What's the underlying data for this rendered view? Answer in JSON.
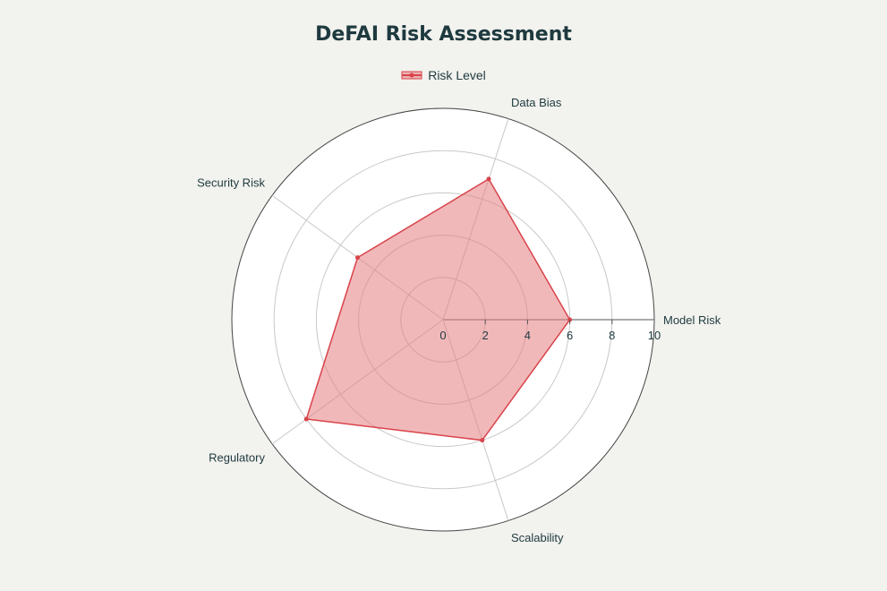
{
  "chart_data": {
    "type": "radar",
    "title": "DeFAI Risk Assessment",
    "categories": [
      "Model Risk",
      "Data Bias",
      "Security Risk",
      "Regulatory",
      "Scalability"
    ],
    "series": [
      {
        "name": "Risk Level",
        "values": [
          6,
          7,
          5,
          8,
          6
        ]
      }
    ],
    "radial_range": [
      0,
      10
    ],
    "radial_ticks": [
      0,
      2,
      4,
      6,
      8,
      10
    ],
    "grid": true,
    "legend": "top-center",
    "colors": {
      "series_line": "#d9434a",
      "series_fill": "#e57e82",
      "background": "#f2f2ee",
      "plot_bg": "#ffffff",
      "grid": "#c8c8c8",
      "text": "#1e3a3f"
    }
  }
}
